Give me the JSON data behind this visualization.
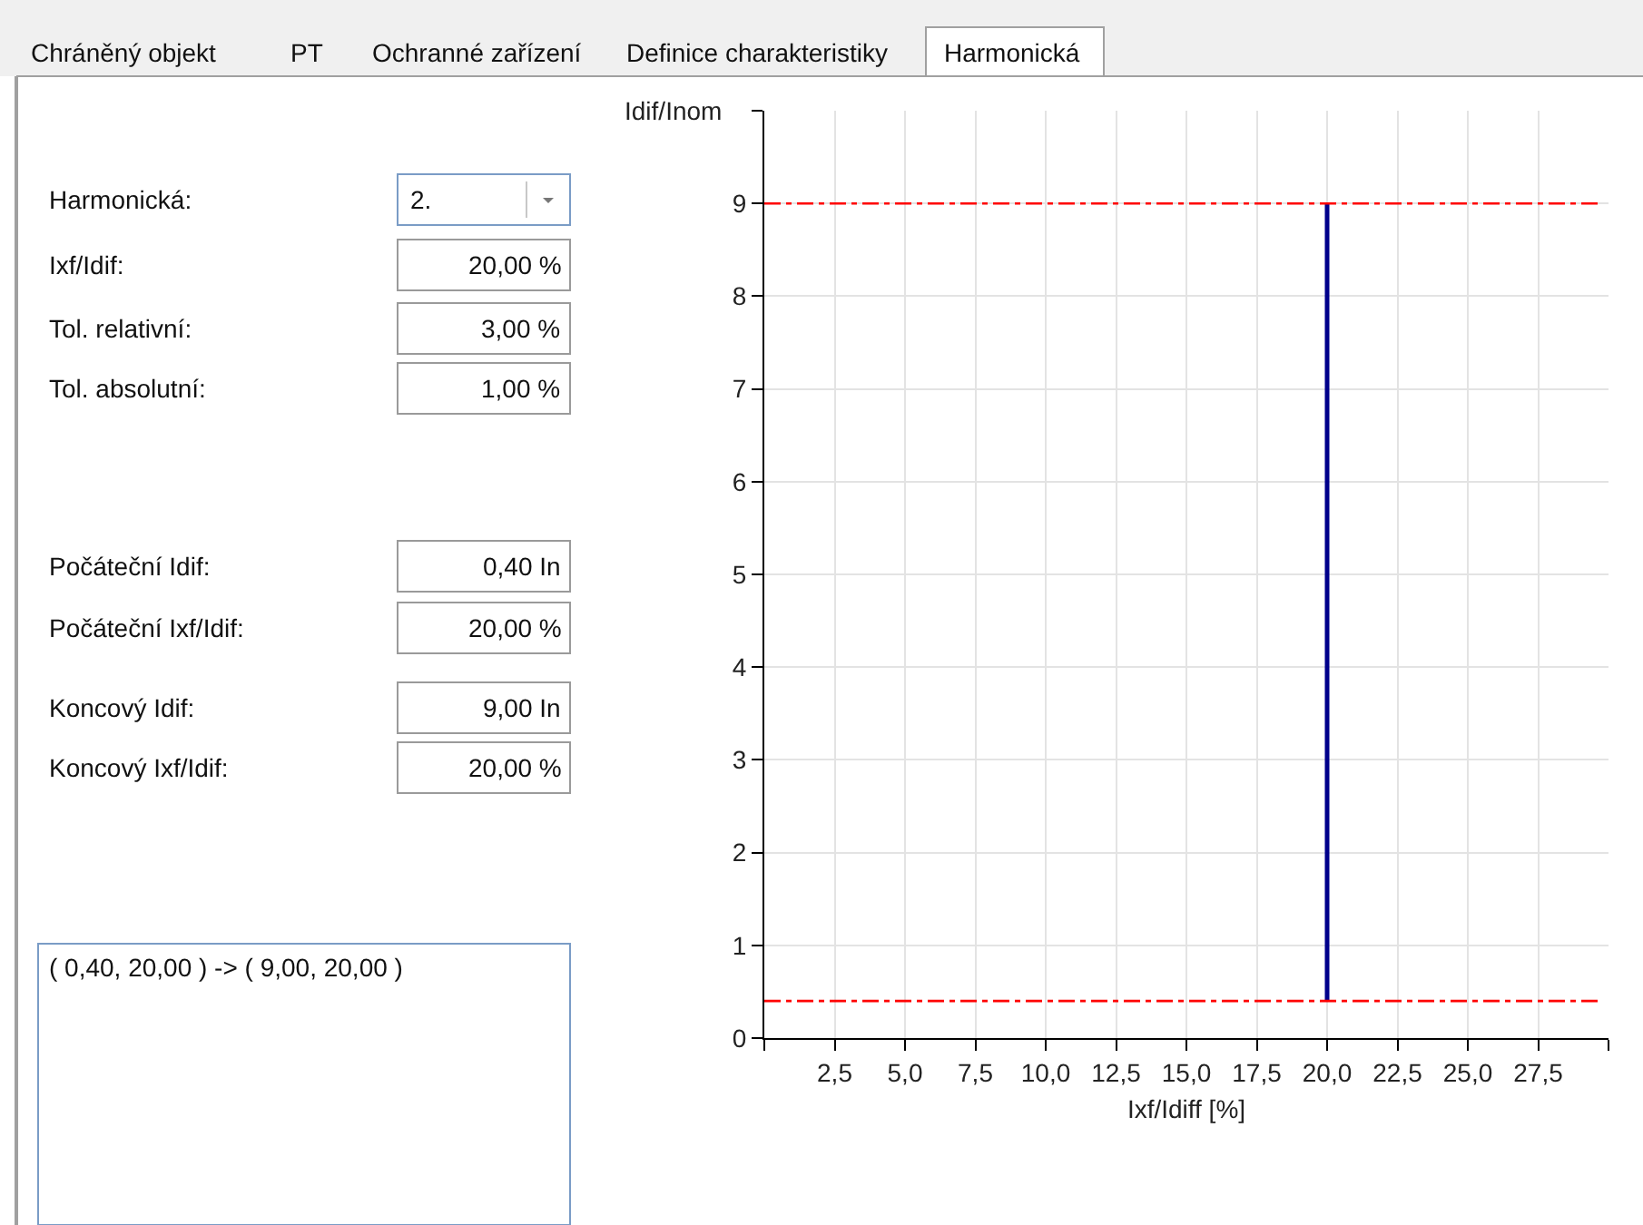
{
  "chart_data": [
    {
      "type": "line",
      "xlabel": "Ixf/Idiff [%]",
      "ylabel": "Idif/Inom",
      "series": [
        {
          "color": "#00008b",
          "x": [
            20,
            20
          ],
          "values": [
            0.4,
            9
          ]
        }
      ],
      "xlim": [
        0,
        30
      ],
      "ylim": [
        0,
        10
      ],
      "xticks": [
        {
          "value": 0,
          "label": null
        },
        {
          "value": 2.5,
          "label": "2,5"
        },
        {
          "value": 5,
          "label": "5,0"
        },
        {
          "value": 7.5,
          "label": "7,5"
        },
        {
          "value": 10,
          "label": "10,0"
        },
        {
          "value": 12.5,
          "label": "12,5"
        },
        {
          "value": 15,
          "label": "15,0"
        },
        {
          "value": 17.5,
          "label": "17,5"
        },
        {
          "value": 20,
          "label": "20,0"
        },
        {
          "value": 22.5,
          "label": "22,5"
        },
        {
          "value": 25,
          "label": "25,0"
        },
        {
          "value": 27.5,
          "label": "27,5"
        },
        {
          "value": 30,
          "label": null
        }
      ],
      "yticks": [
        0,
        1,
        2,
        3,
        4,
        5,
        6,
        7,
        8,
        9,
        {
          "value": 10,
          "label": null
        }
      ],
      "ref_lines": [
        {
          "axis": "y",
          "value": 9,
          "color": "#ff0000",
          "line_style": "dashdot"
        },
        {
          "axis": "y",
          "value": 0.4,
          "color": "#ff0000",
          "line_style": "dashdot"
        }
      ],
      "grid": true,
      "marker": "none",
      "line_style": "solid"
    },
    {
      "type": "other",
      "annotations": [
        "Chráněný objekt",
        "PT",
        "Ochranné zařízení",
        "Definice charakteristiky",
        "Harmonická",
        "Harmonická:",
        "Ixf/Idif:",
        "Tol. relativní:",
        "Tol. absolutní:",
        "Počáteční Idif:",
        "Počáteční Ixf/Idif:",
        "Koncový Idif:",
        "Koncový Ixf/Idif:",
        "2.",
        "20,00 %",
        "3,00 %",
        "1,00 %",
        "0,40 In",
        "20,00 %",
        "9,00 In",
        "20,00 %",
        "( 0,40, 20,00 ) -> ( 9,00, 20,00 )"
      ]
    }
  ]
}
